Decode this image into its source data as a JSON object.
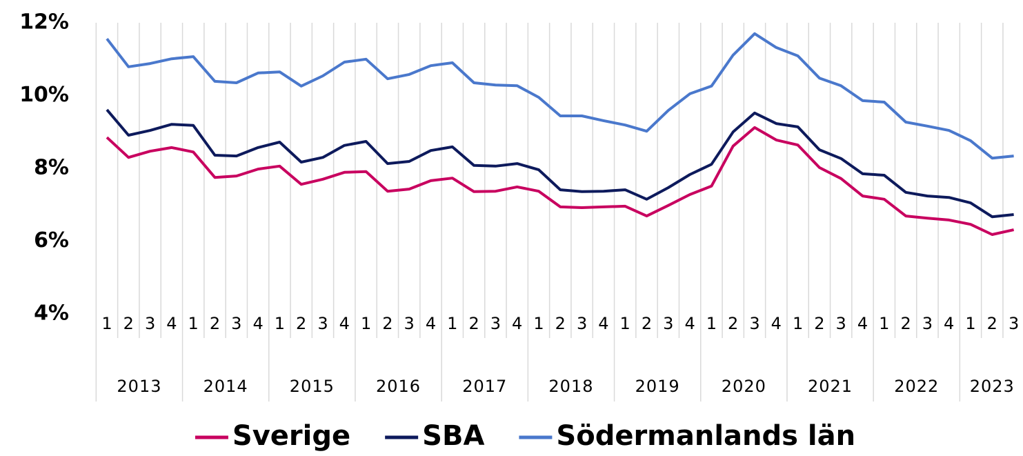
{
  "chart_data": {
    "type": "line",
    "categories": [
      "1",
      "2",
      "3",
      "4",
      "1",
      "2",
      "3",
      "4",
      "1",
      "2",
      "3",
      "4",
      "1",
      "2",
      "3",
      "4",
      "1",
      "2",
      "3",
      "4",
      "1",
      "2",
      "3",
      "4",
      "1",
      "2",
      "3",
      "4",
      "1",
      "2",
      "3",
      "4",
      "1",
      "2",
      "3",
      "4",
      "1",
      "2",
      "3",
      "4",
      "1",
      "2",
      "3"
    ],
    "category_groups": [
      "2013",
      "2014",
      "2015",
      "2016",
      "2017",
      "2018",
      "2019",
      "2020",
      "2021",
      "2022",
      "2023"
    ],
    "series": [
      {
        "name": "Sverige",
        "color": "#c8005f",
        "values": [
          8.85,
          8.3,
          8.47,
          8.57,
          8.45,
          7.75,
          7.79,
          7.98,
          8.06,
          7.56,
          7.7,
          7.89,
          7.91,
          7.37,
          7.43,
          7.66,
          7.73,
          7.36,
          7.37,
          7.49,
          7.37,
          6.94,
          6.92,
          6.94,
          6.96,
          6.69,
          6.98,
          7.28,
          7.51,
          8.61,
          9.12,
          8.78,
          8.64,
          8.02,
          7.72,
          7.24,
          7.15,
          6.69,
          6.63,
          6.58,
          6.46,
          6.18,
          6.31
        ]
      },
      {
        "name": "SBA",
        "color": "#0d1a5c",
        "values": [
          9.61,
          8.91,
          9.04,
          9.21,
          9.18,
          8.36,
          8.34,
          8.57,
          8.72,
          8.17,
          8.3,
          8.63,
          8.74,
          8.13,
          8.19,
          8.49,
          8.59,
          8.08,
          8.06,
          8.13,
          7.96,
          7.41,
          7.36,
          7.37,
          7.41,
          7.15,
          7.47,
          7.83,
          8.11,
          9.0,
          9.52,
          9.23,
          9.14,
          8.51,
          8.27,
          7.85,
          7.81,
          7.34,
          7.24,
          7.2,
          7.05,
          6.67,
          6.73
        ]
      },
      {
        "name": "Södermanlands län",
        "color": "#4a78cc",
        "values": [
          11.56,
          10.79,
          10.88,
          11.01,
          11.07,
          10.39,
          10.35,
          10.62,
          10.65,
          10.26,
          10.54,
          10.92,
          11.0,
          10.46,
          10.58,
          10.82,
          10.9,
          10.35,
          10.29,
          10.27,
          9.95,
          9.44,
          9.44,
          9.31,
          9.19,
          9.02,
          9.59,
          10.05,
          10.26,
          11.11,
          11.7,
          11.32,
          11.09,
          10.48,
          10.27,
          9.86,
          9.82,
          9.27,
          9.16,
          9.04,
          8.76,
          8.28,
          8.34
        ]
      }
    ],
    "ylim": [
      4,
      12
    ],
    "yticks": [
      {
        "value": 4,
        "label": "4%"
      },
      {
        "value": 6,
        "label": "6%"
      },
      {
        "value": 8,
        "label": "8%"
      },
      {
        "value": 10,
        "label": "10%"
      },
      {
        "value": 12,
        "label": "12%"
      }
    ],
    "legend": "bottom"
  }
}
